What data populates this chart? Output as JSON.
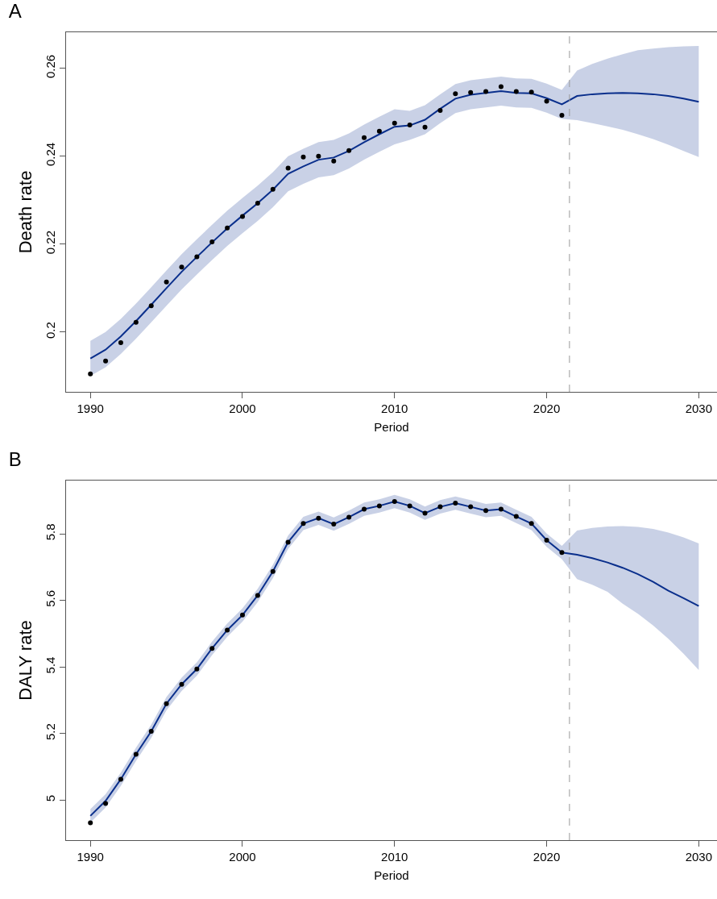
{
  "chart_data": [
    {
      "type": "line",
      "title": "A",
      "xlabel": "Period",
      "ylabel": "Death rate",
      "xlim": [
        1988.4,
        2031.2
      ],
      "xticks": [
        1990,
        2000,
        2010,
        2020,
        2030
      ],
      "ylim": [
        0.1864,
        0.2682
      ],
      "yticks": [
        0.2,
        0.22,
        0.24,
        0.26
      ],
      "grid": false,
      "line_style": "solid",
      "ref_lines": [
        {
          "axis": "x",
          "value": 2021.5,
          "color": "#999999",
          "line_style": "dashed"
        }
      ],
      "series": [
        {
          "type": "scatter",
          "marker": "circle",
          "color": "#000000",
          "x": [
            1990,
            1991,
            1992,
            1993,
            1994,
            1995,
            1996,
            1997,
            1998,
            1999,
            2000,
            2001,
            2002,
            2003,
            2004,
            2005,
            2006,
            2007,
            2008,
            2009,
            2010,
            2011,
            2012,
            2013,
            2014,
            2015,
            2016,
            2017,
            2018,
            2019,
            2020,
            2021
          ],
          "values": [
            0.1905,
            0.1934,
            0.1976,
            0.2022,
            0.206,
            0.2114,
            0.2148,
            0.2171,
            0.2205,
            0.2237,
            0.2263,
            0.2293,
            0.2325,
            0.2373,
            0.2398,
            0.24,
            0.2389,
            0.2413,
            0.2442,
            0.2457,
            0.2475,
            0.2471,
            0.2466,
            0.2504,
            0.2542,
            0.2545,
            0.2547,
            0.2558,
            0.2547,
            0.2546,
            0.2525,
            0.2493
          ]
        },
        {
          "type": "line",
          "color": "#0a2f8c",
          "x": [
            1990,
            1991,
            1992,
            1993,
            1994,
            1995,
            1996,
            1997,
            1998,
            1999,
            2000,
            2001,
            2002,
            2003,
            2004,
            2005,
            2006,
            2007,
            2008,
            2009,
            2010,
            2011,
            2012,
            2013,
            2014,
            2015,
            2016,
            2017,
            2018,
            2019,
            2020,
            2021,
            2022,
            2023,
            2024,
            2025,
            2026,
            2027,
            2028,
            2029,
            2030
          ],
          "values": [
            0.194,
            0.196,
            0.199,
            0.2025,
            0.2062,
            0.21,
            0.2137,
            0.2171,
            0.2204,
            0.2236,
            0.2265,
            0.2293,
            0.2324,
            0.236,
            0.2377,
            0.2392,
            0.2397,
            0.2412,
            0.2432,
            0.245,
            0.2467,
            0.247,
            0.2483,
            0.2508,
            0.2531,
            0.254,
            0.2544,
            0.2548,
            0.2544,
            0.2543,
            0.2532,
            0.2518,
            0.2537,
            0.2541,
            0.2543,
            0.2544,
            0.2543,
            0.2541,
            0.2537,
            0.2531,
            0.2524
          ],
          "lower": [
            0.19,
            0.192,
            0.195,
            0.1985,
            0.2022,
            0.206,
            0.2097,
            0.2131,
            0.2164,
            0.2196,
            0.2225,
            0.2253,
            0.2284,
            0.232,
            0.2337,
            0.2352,
            0.2357,
            0.2372,
            0.2392,
            0.241,
            0.2427,
            0.2437,
            0.245,
            0.2475,
            0.2498,
            0.2507,
            0.2511,
            0.2515,
            0.2511,
            0.251,
            0.2499,
            0.2485,
            0.2482,
            0.2475,
            0.2468,
            0.246,
            0.245,
            0.2439,
            0.2426,
            0.2412,
            0.2398
          ],
          "upper": [
            0.198,
            0.2,
            0.203,
            0.2065,
            0.2102,
            0.214,
            0.2177,
            0.2211,
            0.2244,
            0.2276,
            0.2305,
            0.2333,
            0.2364,
            0.24,
            0.2417,
            0.2432,
            0.2437,
            0.2452,
            0.2472,
            0.249,
            0.2507,
            0.2503,
            0.2516,
            0.2541,
            0.2564,
            0.2573,
            0.2577,
            0.2581,
            0.2577,
            0.2576,
            0.2565,
            0.2551,
            0.2595,
            0.261,
            0.2622,
            0.2632,
            0.2641,
            0.2645,
            0.2648,
            0.265,
            0.2651
          ]
        }
      ]
    },
    {
      "type": "line",
      "title": "B",
      "xlabel": "Period",
      "ylabel": "DALY rate",
      "xlim": [
        1988.4,
        2031.2
      ],
      "xticks": [
        1990,
        2000,
        2010,
        2020,
        2030
      ],
      "ylim": [
        4.88,
        5.96
      ],
      "yticks": [
        5.0,
        5.2,
        5.4,
        5.6,
        5.8
      ],
      "grid": false,
      "line_style": "solid",
      "ref_lines": [
        {
          "axis": "x",
          "value": 2021.5,
          "color": "#999999",
          "line_style": "dashed"
        }
      ],
      "series": [
        {
          "type": "scatter",
          "marker": "circle",
          "color": "#000000",
          "x": [
            1990,
            1991,
            1992,
            1993,
            1994,
            1995,
            1996,
            1997,
            1998,
            1999,
            2000,
            2001,
            2002,
            2003,
            2004,
            2005,
            2006,
            2007,
            2008,
            2009,
            2010,
            2011,
            2012,
            2013,
            2014,
            2015,
            2016,
            2017,
            2018,
            2019,
            2020,
            2021
          ],
          "values": [
            4.932,
            4.99,
            5.063,
            5.138,
            5.207,
            5.29,
            5.348,
            5.394,
            5.456,
            5.511,
            5.556,
            5.615,
            5.687,
            5.775,
            5.831,
            5.847,
            5.829,
            5.85,
            5.874,
            5.884,
            5.897,
            5.884,
            5.862,
            5.881,
            5.892,
            5.881,
            5.87,
            5.874,
            5.852,
            5.831,
            5.781,
            5.744
          ]
        },
        {
          "type": "line",
          "color": "#0a2f8c",
          "x": [
            1990,
            1991,
            1992,
            1993,
            1994,
            1995,
            1996,
            1997,
            1998,
            1999,
            2000,
            2001,
            2002,
            2003,
            2004,
            2005,
            2006,
            2007,
            2008,
            2009,
            2010,
            2011,
            2012,
            2013,
            2014,
            2015,
            2016,
            2017,
            2018,
            2019,
            2020,
            2021,
            2022,
            2023,
            2024,
            2025,
            2026,
            2027,
            2028,
            2029,
            2030
          ],
          "values": [
            4.953,
            4.998,
            5.063,
            5.138,
            5.207,
            5.29,
            5.348,
            5.394,
            5.456,
            5.511,
            5.556,
            5.615,
            5.687,
            5.775,
            5.831,
            5.847,
            5.829,
            5.85,
            5.874,
            5.884,
            5.897,
            5.884,
            5.862,
            5.881,
            5.892,
            5.881,
            5.87,
            5.874,
            5.852,
            5.831,
            5.781,
            5.744,
            5.737,
            5.727,
            5.714,
            5.698,
            5.679,
            5.656,
            5.629,
            5.607,
            5.583
          ],
          "lower": [
            4.933,
            4.978,
            5.043,
            5.118,
            5.187,
            5.27,
            5.328,
            5.374,
            5.436,
            5.491,
            5.536,
            5.595,
            5.667,
            5.755,
            5.811,
            5.827,
            5.809,
            5.83,
            5.854,
            5.864,
            5.877,
            5.864,
            5.842,
            5.861,
            5.872,
            5.861,
            5.85,
            5.854,
            5.832,
            5.811,
            5.761,
            5.724,
            5.664,
            5.647,
            5.626,
            5.59,
            5.56,
            5.525,
            5.485,
            5.44,
            5.391
          ],
          "upper": [
            4.973,
            5.018,
            5.083,
            5.158,
            5.227,
            5.31,
            5.368,
            5.414,
            5.476,
            5.531,
            5.576,
            5.635,
            5.707,
            5.795,
            5.851,
            5.867,
            5.849,
            5.87,
            5.894,
            5.904,
            5.917,
            5.904,
            5.882,
            5.901,
            5.912,
            5.901,
            5.89,
            5.894,
            5.872,
            5.851,
            5.801,
            5.764,
            5.81,
            5.818,
            5.822,
            5.823,
            5.821,
            5.815,
            5.804,
            5.789,
            5.771
          ]
        }
      ]
    }
  ]
}
